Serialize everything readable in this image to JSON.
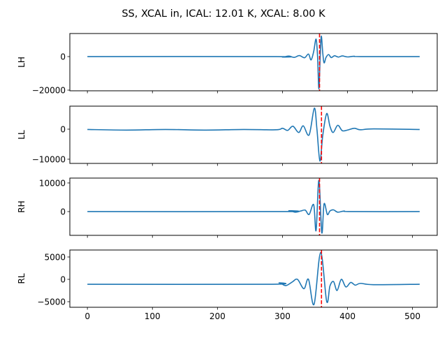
{
  "chart_data": {
    "type": "line",
    "title": "SS, XCAL in, ICAL: 12.01 K, XCAL: 8.00 K",
    "xlim": [
      -27,
      538
    ],
    "x_ticks": [
      0,
      100,
      200,
      300,
      400,
      500
    ],
    "x_tick_labels": [
      "0",
      "100",
      "200",
      "300",
      "400",
      "500"
    ],
    "grid": false,
    "line_color": "#1f77b4",
    "marker_color": "#ff0000",
    "panels": [
      {
        "ylabel": "LH",
        "ylim": [
          -20400,
          13750
        ],
        "y_ticks": [
          -20000,
          0
        ],
        "y_tick_labels": [
          "−20000",
          "0"
        ],
        "vline_x": 357,
        "points": [
          [
            0,
            0
          ],
          [
            290,
            0
          ],
          [
            300,
            -300
          ],
          [
            310,
            300
          ],
          [
            318,
            -500
          ],
          [
            326,
            600
          ],
          [
            334,
            -700
          ],
          [
            340,
            1500
          ],
          [
            344,
            -2000
          ],
          [
            348,
            3000
          ],
          [
            351.7,
            10400
          ],
          [
            354,
            0
          ],
          [
            356,
            -19300
          ],
          [
            358,
            0
          ],
          [
            359.7,
            12200
          ],
          [
            362,
            2000
          ],
          [
            364,
            -3750
          ],
          [
            367,
            -500
          ],
          [
            371,
            1200
          ],
          [
            375,
            -600
          ],
          [
            380,
            500
          ],
          [
            386,
            -300
          ],
          [
            392,
            400
          ],
          [
            400,
            -200
          ],
          [
            410,
            200
          ],
          [
            420,
            0
          ],
          [
            511,
            0
          ]
        ]
      },
      {
        "ylabel": "LL",
        "ylim": [
          -11400,
          7670
        ],
        "y_ticks": [
          -10000,
          0
        ],
        "y_tick_labels": [
          "−10000",
          "0"
        ],
        "vline_x": 360,
        "points": [
          [
            0,
            -100
          ],
          [
            60,
            -300
          ],
          [
            120,
            -100
          ],
          [
            180,
            -300
          ],
          [
            240,
            -100
          ],
          [
            290,
            -200
          ],
          [
            300,
            300
          ],
          [
            308,
            -400
          ],
          [
            316,
            1000
          ],
          [
            325,
            -1100
          ],
          [
            332,
            1100
          ],
          [
            341,
            -1900
          ],
          [
            349,
            7000
          ],
          [
            353,
            0
          ],
          [
            357.6,
            -10600
          ],
          [
            362,
            -2000
          ],
          [
            368,
            5200
          ],
          [
            373,
            1000
          ],
          [
            378,
            -1100
          ],
          [
            385,
            1300
          ],
          [
            392,
            -500
          ],
          [
            400,
            -300
          ],
          [
            410.5,
            300
          ],
          [
            420,
            -200
          ],
          [
            440,
            100
          ],
          [
            511,
            -100
          ]
        ]
      },
      {
        "ylabel": "RH",
        "ylim": [
          -8300,
          11700
        ],
        "y_ticks": [
          0,
          10000
        ],
        "y_tick_labels": [
          "0",
          "10000"
        ],
        "vline_x": 357,
        "points": [
          [
            0,
            0
          ],
          [
            300,
            0
          ],
          [
            310,
            300
          ],
          [
            320,
            -200
          ],
          [
            328,
            200
          ],
          [
            335,
            500
          ],
          [
            341,
            -1000
          ],
          [
            348,
            2400
          ],
          [
            351.7,
            -6600
          ],
          [
            356,
            10900
          ],
          [
            360.5,
            -7400
          ],
          [
            364,
            2700
          ],
          [
            369,
            -1000
          ],
          [
            373,
            200
          ],
          [
            378.5,
            600
          ],
          [
            385,
            -200
          ],
          [
            395,
            200
          ],
          [
            405,
            0
          ],
          [
            511,
            0
          ]
        ]
      },
      {
        "ylabel": "RL",
        "ylim": [
          -6250,
          6560
        ],
        "y_ticks": [
          -5000,
          0,
          5000
        ],
        "y_tick_labels": [
          "−5000",
          "0",
          "5000"
        ],
        "vline_x": 360,
        "points": [
          [
            0,
            -1100
          ],
          [
            280,
            -1100
          ],
          [
            295,
            -800
          ],
          [
            305,
            -1400
          ],
          [
            315,
            -600
          ],
          [
            323,
            0
          ],
          [
            333,
            -2100
          ],
          [
            340,
            0
          ],
          [
            348.6,
            -5600
          ],
          [
            358.7,
            6000
          ],
          [
            368,
            -4950
          ],
          [
            373,
            -1500
          ],
          [
            378.5,
            -500
          ],
          [
            384,
            -2500
          ],
          [
            390.5,
            0
          ],
          [
            397.5,
            -1700
          ],
          [
            405,
            -700
          ],
          [
            412,
            -1300
          ],
          [
            420,
            -900
          ],
          [
            440,
            -1200
          ],
          [
            511,
            -1100
          ]
        ]
      }
    ]
  }
}
